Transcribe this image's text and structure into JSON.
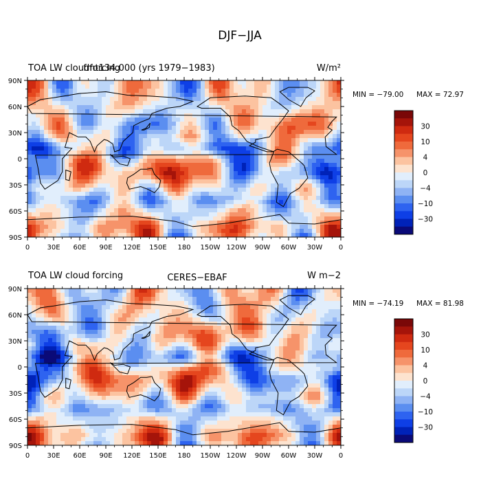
{
  "figure": {
    "title": "DJF−JJA"
  },
  "panels": [
    {
      "left_title": "TOA LW cloudforcing",
      "center_title": "fmt134.000 (yrs 1979−1983)",
      "units": "W/m²",
      "min_label": "MIN = −79.00",
      "max_label": "MAX =  72.97",
      "seed": 11
    },
    {
      "left_title": "TOA LW cloud forcing",
      "center_title": "CERES−EBAF",
      "units": "W m−2",
      "min_label": "MIN = −74.19",
      "max_label": "MAX =  81.98",
      "seed": 29
    }
  ],
  "axes": {
    "lat_ticks": [
      "90N",
      "60N",
      "30N",
      "0",
      "30S",
      "60S",
      "90S"
    ],
    "lon_ticks": [
      "0",
      "30E",
      "60E",
      "90E",
      "120E",
      "150E",
      "180",
      "150W",
      "120W",
      "90W",
      "60W",
      "30W",
      "0"
    ]
  },
  "colorbar": {
    "colors": [
      "#0a0a78",
      "#0022b8",
      "#0e3fe6",
      "#2e63f0",
      "#5b8ef0",
      "#8fb3f4",
      "#bcd6f8",
      "#e1eefc",
      "#fde3cf",
      "#fcc3a0",
      "#f6936a",
      "#ef6a3c",
      "#e5461e",
      "#cf2a10",
      "#a5140a",
      "#7a0808"
    ],
    "labels": [
      "30",
      "10",
      "4",
      "0",
      "−4",
      "−10",
      "−30"
    ]
  }
}
